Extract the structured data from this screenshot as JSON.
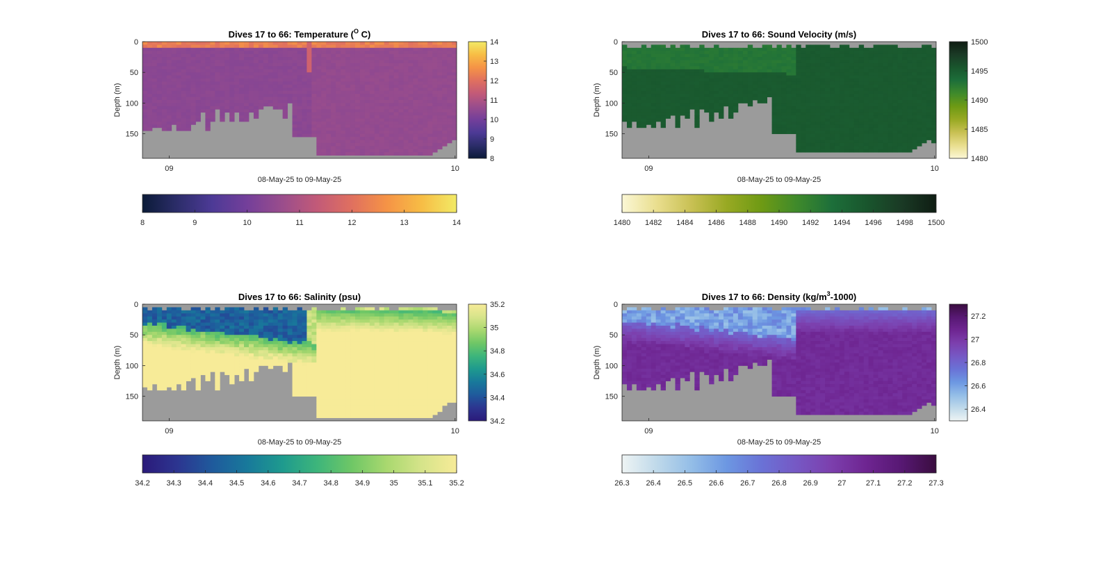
{
  "figure": {
    "background": "#ffffff"
  },
  "chart_data": [
    {
      "type": "heatmap",
      "title": "Dives 17 to 66: Temperature (",
      "title_sup": "O",
      "title_end": " C)",
      "xlabel": "08-May-25 to 09-May-25",
      "ylabel": "Depth (m)",
      "x_ticks": [
        "09",
        "10"
      ],
      "y_ticks": [
        0,
        50,
        100,
        150
      ],
      "ylim": [
        0,
        190
      ],
      "dives": [
        17,
        66
      ],
      "bottom_depths_m": [
        145,
        145,
        140,
        140,
        145,
        145,
        135,
        145,
        145,
        145,
        135,
        130,
        115,
        145,
        130,
        110,
        130,
        115,
        130,
        115,
        130,
        130,
        115,
        125,
        110,
        105,
        105,
        110,
        110,
        125,
        100,
        155,
        155,
        155,
        155,
        155,
        185,
        185,
        185,
        185,
        185,
        185,
        185,
        185,
        185,
        185,
        185,
        185,
        185,
        185,
        185,
        185,
        185,
        185,
        185,
        185,
        185,
        185,
        185,
        185,
        180,
        175,
        170,
        165,
        160
      ],
      "colormap": [
        "#0b1b38",
        "#2c2d6a",
        "#4d3a96",
        "#743f9a",
        "#9a4d8c",
        "#c25a78",
        "#e0705f",
        "#f59346",
        "#f7bd45",
        "#f2ea66"
      ],
      "colorbar": {
        "min": 8,
        "max": 14,
        "ticks": [
          8,
          9,
          10,
          11,
          12,
          13,
          14
        ]
      },
      "layers": [
        {
          "from_m": 0,
          "to_m": 8,
          "value": 12.3
        },
        {
          "from_m": 8,
          "to_m": 40,
          "value": 10.4
        },
        {
          "from_m": 40,
          "to_m": 190,
          "value": 10.3
        }
      ],
      "shallow_mix_value": 10.55,
      "mask_color": "#9b9b9b"
    },
    {
      "type": "heatmap",
      "title": "Dives 17 to 66: Sound Velocity (m/s)",
      "xlabel": "08-May-25 to 09-May-25",
      "ylabel": "Depth (m)",
      "x_ticks": [
        "09",
        "10"
      ],
      "y_ticks": [
        0,
        50,
        100,
        150
      ],
      "ylim": [
        0,
        190
      ],
      "bottom_depths_m": [
        130,
        140,
        130,
        140,
        140,
        135,
        140,
        130,
        140,
        125,
        120,
        140,
        120,
        125,
        110,
        140,
        110,
        115,
        130,
        115,
        125,
        105,
        125,
        115,
        100,
        100,
        105,
        95,
        100,
        100,
        90,
        150,
        150,
        150,
        150,
        150,
        180,
        180,
        180,
        180,
        180,
        180,
        180,
        180,
        180,
        180,
        180,
        180,
        180,
        180,
        180,
        180,
        180,
        180,
        180,
        180,
        180,
        180,
        180,
        180,
        175,
        170,
        165,
        160,
        165
      ],
      "colormap": [
        "#fbf7d5",
        "#e9de8e",
        "#c8c053",
        "#98a923",
        "#6e9a14",
        "#3f8a2b",
        "#1d6f3a",
        "#19562d",
        "#1a3a25",
        "#0f1d13"
      ],
      "colorbar": {
        "min": 1480,
        "max": 1500,
        "ticks": [
          1480,
          1485,
          1490,
          1495,
          1500
        ],
        "h_ticks": [
          1480,
          1482,
          1484,
          1486,
          1488,
          1490,
          1492,
          1494,
          1496,
          1498,
          1500
        ]
      },
      "surface_value": 1492.8,
      "deep_value": 1495.2,
      "mask_color": "#9b9b9b"
    },
    {
      "type": "heatmap",
      "title": "Dives 17 to 66: Salinity (psu)",
      "xlabel": "08-May-25 to 09-May-25",
      "ylabel": "Depth (m)",
      "x_ticks": [
        "09",
        "10"
      ],
      "y_ticks": [
        0,
        50,
        100,
        150
      ],
      "ylim": [
        0,
        190
      ],
      "bottom_depths_m": [
        135,
        140,
        130,
        140,
        140,
        135,
        140,
        130,
        140,
        125,
        120,
        140,
        115,
        125,
        110,
        140,
        110,
        115,
        130,
        115,
        125,
        105,
        125,
        110,
        100,
        100,
        105,
        100,
        100,
        110,
        95,
        150,
        150,
        150,
        150,
        150,
        185,
        185,
        185,
        185,
        185,
        185,
        185,
        185,
        185,
        185,
        185,
        185,
        185,
        185,
        185,
        185,
        185,
        185,
        185,
        185,
        185,
        185,
        185,
        185,
        180,
        175,
        165,
        160,
        160
      ],
      "colormap": [
        "#2b1a7a",
        "#2c3590",
        "#1f5a9c",
        "#18799b",
        "#1e9a8e",
        "#3db57b",
        "#6fc766",
        "#a9d86f",
        "#d6e48a",
        "#f7eb98"
      ],
      "colorbar": {
        "min": 34.2,
        "max": 35.2,
        "ticks": [
          34.2,
          34.4,
          34.6,
          34.8,
          35,
          35.2
        ],
        "h_ticks": [
          34.2,
          34.3,
          34.4,
          34.5,
          34.6,
          34.7,
          34.8,
          34.9,
          35,
          35.1,
          35.2
        ]
      },
      "surface_value": 34.45,
      "deep_value": 35.2,
      "mask_color": "#9b9b9b"
    },
    {
      "type": "heatmap",
      "title": "Dives 17 to 66: Density (kg/m",
      "title_sup": "3",
      "title_end": "-1000)",
      "xlabel": "08-May-25 to 09-May-25",
      "ylabel": "Depth (m)",
      "x_ticks": [
        "09",
        "10"
      ],
      "y_ticks": [
        0,
        50,
        100,
        150
      ],
      "ylim": [
        0,
        190
      ],
      "bottom_depths_m": [
        130,
        140,
        130,
        140,
        140,
        135,
        140,
        130,
        140,
        125,
        120,
        140,
        120,
        125,
        110,
        140,
        110,
        115,
        130,
        115,
        125,
        105,
        125,
        115,
        100,
        100,
        105,
        95,
        100,
        100,
        90,
        150,
        150,
        150,
        150,
        150,
        180,
        180,
        180,
        180,
        180,
        180,
        180,
        180,
        180,
        180,
        180,
        180,
        180,
        180,
        180,
        180,
        180,
        180,
        180,
        180,
        180,
        180,
        180,
        180,
        175,
        170,
        165,
        160,
        165
      ],
      "colormap": [
        "#eef4f4",
        "#bfd9ea",
        "#93bde7",
        "#6c97e2",
        "#6a72d6",
        "#7658c4",
        "#7c3fad",
        "#6e2591",
        "#571873",
        "#3a0d3f"
      ],
      "colorbar": {
        "min": 26.3,
        "max": 27.3,
        "ticks": [
          26.4,
          26.6,
          26.8,
          27,
          27.2
        ],
        "h_ticks": [
          26.3,
          26.4,
          26.5,
          26.6,
          26.7,
          26.8,
          26.9,
          27,
          27.1,
          27.2,
          27.3
        ]
      },
      "surface_value": 26.6,
      "deep_value": 27.05,
      "mask_color": "#9b9b9b"
    }
  ]
}
